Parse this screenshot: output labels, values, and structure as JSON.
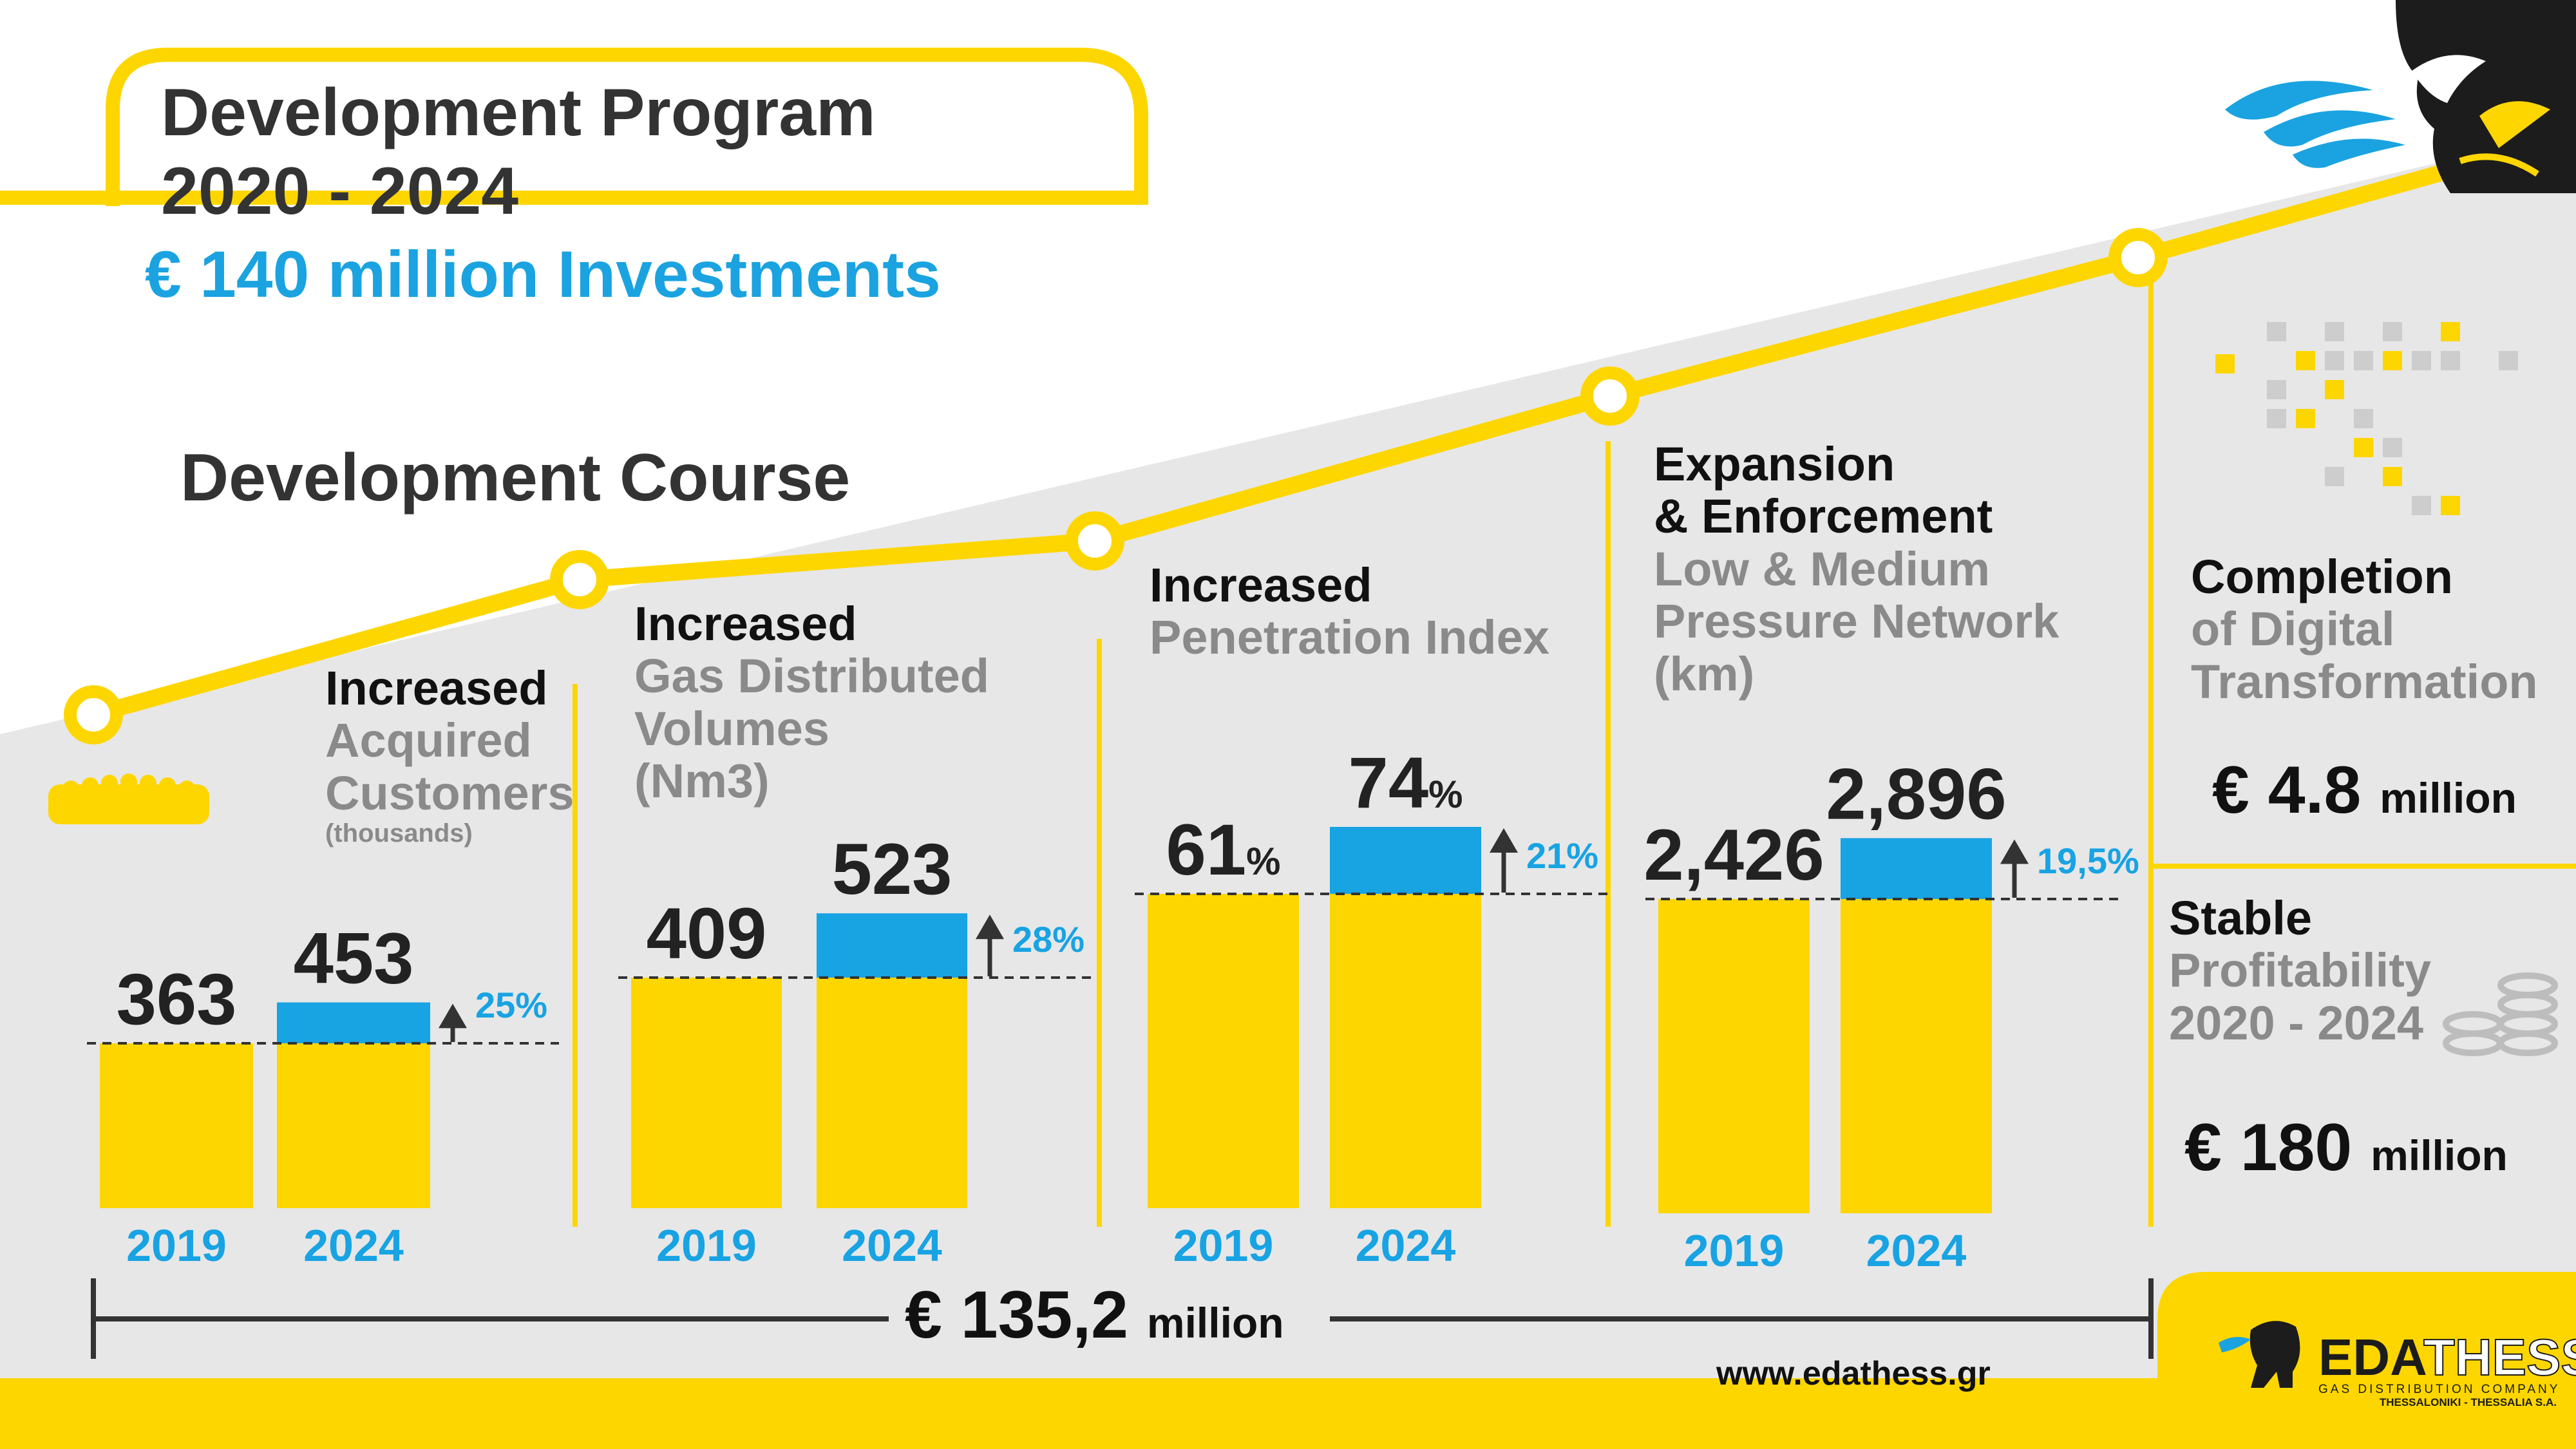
{
  "header": {
    "title_line1": "Development Program",
    "title_line2": "2020 - 2024",
    "investment": "€ 140 million Investments"
  },
  "course_heading": "Development Course",
  "colors": {
    "yellow": "#fdd600",
    "blue": "#18a3e3",
    "grey_bg": "#e7e7e8",
    "dark": "#333333"
  },
  "panels": {
    "customers": {
      "heading_bold": "Increased",
      "heading_grey": [
        "Acquired",
        "Customers"
      ],
      "unit": "(thousands)"
    },
    "volumes": {
      "heading_bold": "Increased",
      "heading_grey": [
        "Gas Distributed",
        "Volumes",
        "(Nm3)"
      ]
    },
    "penetration": {
      "heading_bold": "Increased",
      "heading_grey": [
        "Penetration Index"
      ]
    },
    "network": {
      "heading_bold": [
        "Expansion",
        "& Enforcement"
      ],
      "heading_grey": [
        "Low & Medium",
        "Pressure Network",
        "(km)"
      ]
    }
  },
  "chart_data": [
    {
      "type": "bar",
      "categories": [
        "2019",
        "2024"
      ],
      "values": [
        363,
        453
      ],
      "value_labels": [
        "363",
        "453"
      ],
      "growth": "25%"
    },
    {
      "type": "bar",
      "categories": [
        "2019",
        "2024"
      ],
      "values": [
        409,
        523
      ],
      "value_labels": [
        "409",
        "523"
      ],
      "growth": "28%"
    },
    {
      "type": "bar",
      "categories": [
        "2019",
        "2024"
      ],
      "values": [
        61,
        74
      ],
      "value_labels": [
        "61",
        "74"
      ],
      "value_suffix": "%",
      "growth": "21%"
    },
    {
      "type": "bar",
      "categories": [
        "2019",
        "2024"
      ],
      "values": [
        2426,
        2896
      ],
      "value_labels": [
        "2,426",
        "2,896"
      ],
      "growth": "19,5%"
    }
  ],
  "total": {
    "amount": "€ 135,2",
    "unit": "million"
  },
  "digital": {
    "bold": "Completion",
    "grey": [
      "of Digital",
      "Transformation"
    ],
    "amount": "€ 4.8",
    "unit": "million"
  },
  "profit": {
    "bold": "Stable",
    "grey": [
      "Profitability",
      "2020 - 2024"
    ],
    "amount": "€ 180",
    "unit": "million"
  },
  "footer": {
    "website": "www.edathess.gr",
    "logo_brand_1": "EDA",
    "logo_brand_2": "THESS",
    "logo_tagline": "GAS DISTRIBUTION COMPANY",
    "logo_sub": "THESSALONIKI - THESSALIA S.A."
  }
}
